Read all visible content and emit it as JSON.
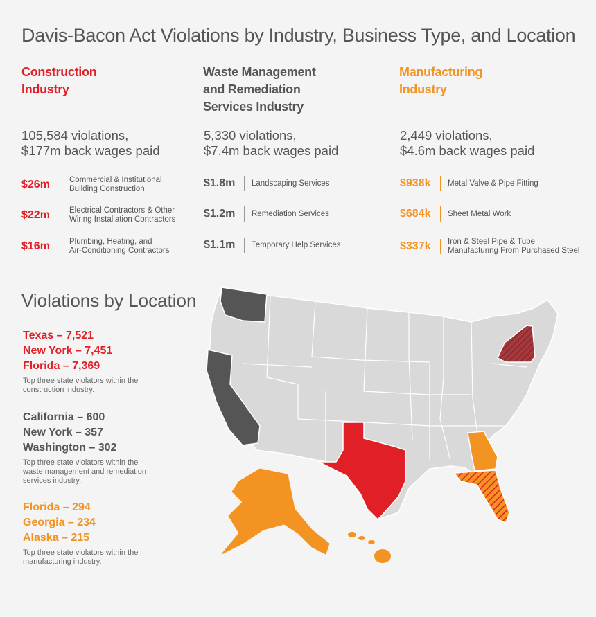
{
  "title": "Davis-Bacon Act Violations by Industry, Business Type, and Location",
  "colors": {
    "construction": "#e01f26",
    "waste": "#555555",
    "manufacturing": "#f39322",
    "state_fill": "#d9d9d9",
    "state_stroke": "#ffffff"
  },
  "industries": [
    {
      "name_line1": "Construction",
      "name_line2": "Industry",
      "name_line3": "",
      "summary_line1": "105,584 violations,",
      "summary_line2": "$177m back wages paid",
      "items": [
        {
          "amount": "$26m",
          "label1": "Commercial & Institutional",
          "label2": "Building Construction"
        },
        {
          "amount": "$22m",
          "label1": "Electrical Contractors & Other",
          "label2": "Wiring Installation Contractors"
        },
        {
          "amount": "$16m",
          "label1": "Plumbing, Heating, and",
          "label2": "Air-Conditioning Contractors"
        }
      ]
    },
    {
      "name_line1": "Waste Management",
      "name_line2": "and Remediation",
      "name_line3": "Services Industry",
      "summary_line1": "5,330 violations,",
      "summary_line2": "$7.4m back wages paid",
      "items": [
        {
          "amount": "$1.8m",
          "label1": "Landscaping Services",
          "label2": ""
        },
        {
          "amount": "$1.2m",
          "label1": "Remediation Services",
          "label2": ""
        },
        {
          "amount": "$1.1m",
          "label1": "Temporary Help Services",
          "label2": ""
        }
      ]
    },
    {
      "name_line1": "Manufacturing",
      "name_line2": "Industry",
      "name_line3": "",
      "summary_line1": "2,449 violations,",
      "summary_line2": "$4.6m back wages paid",
      "items": [
        {
          "amount": "$938k",
          "label1": "Metal Valve & Pipe Fitting",
          "label2": ""
        },
        {
          "amount": "$684k",
          "label1": "Sheet Metal Work",
          "label2": ""
        },
        {
          "amount": "$337k",
          "label1": "Iron & Steel Pipe & Tube",
          "label2": "Manufacturing From Purchased Steel"
        }
      ]
    }
  ],
  "location": {
    "title": "Violations by Location",
    "groups": [
      {
        "states": [
          "Texas – 7,521",
          "New York – 7,451",
          "Florida – 7,369"
        ],
        "note1": "Top three state violators within the",
        "note2": "construction industry.",
        "note3": ""
      },
      {
        "states": [
          "California – 600",
          "New York – 357",
          "Washington – 302"
        ],
        "note1": "Top three state violators within the",
        "note2": "waste management and remediation",
        "note3": "services industry."
      },
      {
        "states": [
          "Florida – 294",
          "Georgia – 234",
          "Alaska – 215"
        ],
        "note1": "Top three state violators within the",
        "note2": "manufacturing industry.",
        "note3": ""
      }
    ]
  }
}
